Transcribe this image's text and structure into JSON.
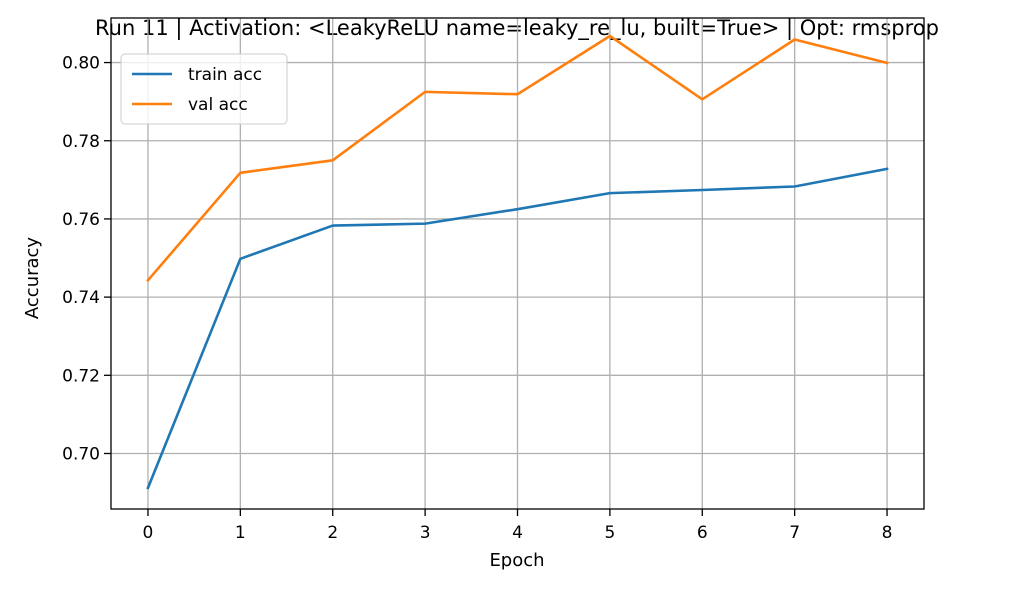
{
  "chart_data": {
    "type": "line",
    "title": "Run 11 | Activation: <LeakyReLU name=leaky_re_lu, built=True> | Opt: rmsprop",
    "xlabel": "Epoch",
    "ylabel": "Accuracy",
    "x": [
      0,
      1,
      2,
      3,
      4,
      5,
      6,
      7,
      8
    ],
    "xticks": [
      "0",
      "1",
      "2",
      "3",
      "4",
      "5",
      "6",
      "7",
      "8"
    ],
    "yticks": [
      "0.70",
      "0.72",
      "0.74",
      "0.76",
      "0.78",
      "0.80"
    ],
    "xlim": [
      -0.4,
      8.4
    ],
    "ylim": [
      0.6858,
      0.8114
    ],
    "grid": true,
    "legend_position": "top-left",
    "series": [
      {
        "name": "train acc",
        "color": "#1f77b4",
        "values": [
          0.6912,
          0.7498,
          0.7583,
          0.7588,
          0.7625,
          0.7666,
          0.7674,
          0.7683,
          0.7728
        ]
      },
      {
        "name": "val acc",
        "color": "#ff7f0e",
        "values": [
          0.7443,
          0.7718,
          0.775,
          0.7925,
          0.7919,
          0.8068,
          0.7906,
          0.8059,
          0.7999
        ]
      }
    ]
  }
}
